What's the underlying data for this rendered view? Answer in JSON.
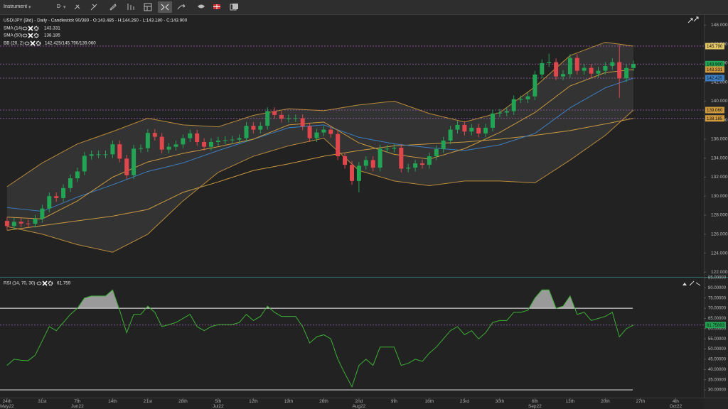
{
  "toolbar": {
    "instrument": "Instrument",
    "interval": "D"
  },
  "chart_data": [
    {
      "type": "candlestick",
      "legend": "USD/JPY (Bid) - Daily - Candlestick  90/380 - O:143.485 - H:144.260 - L:143.180 - C:143.900",
      "xlim": [
        -1,
        99
      ],
      "ylim": [
        121.5,
        149
      ],
      "yticks": [
        {
          "value": 148,
          "label": "148.000"
        },
        {
          "value": 146,
          "label": "146.000"
        },
        {
          "value": 144,
          "label": "144.000"
        },
        {
          "value": 142,
          "label": "142.000"
        },
        {
          "value": 140,
          "label": "140.000"
        },
        {
          "value": 138,
          "label": "138.000"
        },
        {
          "value": 136,
          "label": "136.000"
        },
        {
          "value": 134,
          "label": "134.000"
        },
        {
          "value": 132,
          "label": "132.000"
        },
        {
          "value": 130,
          "label": "130.000"
        },
        {
          "value": 128,
          "label": "128.000"
        },
        {
          "value": 126,
          "label": "126.000"
        },
        {
          "value": 124,
          "label": "124.000"
        },
        {
          "value": 122,
          "label": "122.000"
        }
      ],
      "xticks": [
        {
          "value": 0,
          "label": "24th May22"
        },
        {
          "value": 5,
          "label": "31st"
        },
        {
          "value": 10,
          "label": "7th Jun22"
        },
        {
          "value": 15,
          "label": "14th"
        },
        {
          "value": 20,
          "label": "21st"
        },
        {
          "value": 25,
          "label": "28th"
        },
        {
          "value": 30,
          "label": "5th Jul22"
        },
        {
          "value": 35,
          "label": "12th"
        },
        {
          "value": 40,
          "label": "19th"
        },
        {
          "value": 45,
          "label": "26th"
        },
        {
          "value": 50,
          "label": "2nd Aug22"
        },
        {
          "value": 55,
          "label": "9th"
        },
        {
          "value": 60,
          "label": "16th"
        },
        {
          "value": 65,
          "label": "23rd"
        },
        {
          "value": 70,
          "label": "30th"
        },
        {
          "value": 75,
          "label": "6th Sep22"
        },
        {
          "value": 80,
          "label": "13th"
        },
        {
          "value": 85,
          "label": "20th"
        },
        {
          "value": 90,
          "label": "27th"
        },
        {
          "value": 95,
          "label": "4th Oct22"
        }
      ],
      "up_color": "#22a454",
      "down_color": "#e0474c",
      "x": [
        0,
        1,
        2,
        3,
        4,
        5,
        6,
        7,
        8,
        9,
        10,
        11,
        12,
        13,
        14,
        15,
        16,
        17,
        18,
        19,
        20,
        21,
        22,
        23,
        24,
        25,
        26,
        27,
        28,
        29,
        30,
        31,
        32,
        33,
        34,
        35,
        36,
        37,
        38,
        39,
        40,
        41,
        42,
        43,
        44,
        45,
        46,
        47,
        48,
        49,
        50,
        51,
        52,
        53,
        54,
        55,
        56,
        57,
        58,
        59,
        60,
        61,
        62,
        63,
        64,
        65,
        66,
        67,
        68,
        69,
        70,
        71,
        72,
        73,
        74,
        75,
        76,
        77,
        78,
        79,
        80,
        81,
        82,
        83,
        84,
        85,
        86,
        87,
        88,
        89
      ],
      "open": [
        127.4,
        126.85,
        127.3,
        127.12,
        127.1,
        127.62,
        128.7,
        130.0,
        129.8,
        130.85,
        131.88,
        132.6,
        134.25,
        134.4,
        134.4,
        134.4,
        135.46,
        133.95,
        132.2,
        135.0,
        135.05,
        136.65,
        136.25,
        134.9,
        135.2,
        135.45,
        136.1,
        136.6,
        135.7,
        135.2,
        135.7,
        135.85,
        135.9,
        135.95,
        136.1,
        137.4,
        137.0,
        137.4,
        138.95,
        138.55,
        138.15,
        138.2,
        138.2,
        137.35,
        136.1,
        136.7,
        137.0,
        136.55,
        134.2,
        133.3,
        131.6,
        133.2,
        133.8,
        133.0,
        135.0,
        135.0,
        135.1,
        132.9,
        133.0,
        133.45,
        133.3,
        134.2,
        134.95,
        135.85,
        137.0,
        137.5,
        136.8,
        137.2,
        136.6,
        137.2,
        138.7,
        138.8,
        138.95,
        140.2,
        140.2,
        140.5,
        142.8,
        144.0,
        144.1,
        142.6,
        142.85,
        144.55,
        143.2,
        143.5,
        142.9,
        143.2,
        143.7,
        144.1,
        142.4,
        143.485
      ],
      "high": [
        127.8,
        127.7,
        127.7,
        127.52,
        128.02,
        129.1,
        130.4,
        130.4,
        131.25,
        132.28,
        133.0,
        134.65,
        134.8,
        134.8,
        134.8,
        135.86,
        135.86,
        134.35,
        135.4,
        135.45,
        137.05,
        137.05,
        136.65,
        135.6,
        135.85,
        136.5,
        137.0,
        137.0,
        136.1,
        136.1,
        136.25,
        136.3,
        136.35,
        136.5,
        137.8,
        137.8,
        137.8,
        139.35,
        139.35,
        138.95,
        138.6,
        138.6,
        138.6,
        137.75,
        137.1,
        137.4,
        137.4,
        136.95,
        134.6,
        133.7,
        133.6,
        134.2,
        134.2,
        135.4,
        135.4,
        135.5,
        135.5,
        133.4,
        133.85,
        133.85,
        134.6,
        135.35,
        136.25,
        137.4,
        137.9,
        137.9,
        137.6,
        137.6,
        137.6,
        139.1,
        139.2,
        139.35,
        140.6,
        140.6,
        140.9,
        143.2,
        144.4,
        144.99,
        144.5,
        143.25,
        144.95,
        144.95,
        143.9,
        143.9,
        143.6,
        144.1,
        144.5,
        145.9,
        143.85,
        144.26
      ],
      "low": [
        126.45,
        126.45,
        126.72,
        126.7,
        126.7,
        127.22,
        128.3,
        129.4,
        129.4,
        130.45,
        131.48,
        132.2,
        133.85,
        134.0,
        134.0,
        134.0,
        133.55,
        131.8,
        131.8,
        134.6,
        134.65,
        135.85,
        134.5,
        134.5,
        134.8,
        135.05,
        135.7,
        135.3,
        134.8,
        134.8,
        135.3,
        135.45,
        135.5,
        135.55,
        135.7,
        136.6,
        136.6,
        137.0,
        138.15,
        137.75,
        137.75,
        137.8,
        136.95,
        135.7,
        135.7,
        136.3,
        136.15,
        133.8,
        132.9,
        131.2,
        130.4,
        132.8,
        132.6,
        132.6,
        134.6,
        134.6,
        132.5,
        132.5,
        132.6,
        132.9,
        132.9,
        133.8,
        134.55,
        135.45,
        136.6,
        136.4,
        136.4,
        136.2,
        136.2,
        136.8,
        138.3,
        138.4,
        138.55,
        139.8,
        139.8,
        140.1,
        142.4,
        143.6,
        142.2,
        142.2,
        142.45,
        142.8,
        142.8,
        142.5,
        142.5,
        142.8,
        143.3,
        140.35,
        142.0,
        143.18
      ],
      "close": [
        126.85,
        127.3,
        127.12,
        127.1,
        127.62,
        128.7,
        130.0,
        129.8,
        130.85,
        131.88,
        132.6,
        134.25,
        134.4,
        134.4,
        134.4,
        135.46,
        133.95,
        132.2,
        135.0,
        135.05,
        136.65,
        136.25,
        134.9,
        135.2,
        135.45,
        136.1,
        136.6,
        135.7,
        135.2,
        135.7,
        135.85,
        135.9,
        135.95,
        136.1,
        137.4,
        137.0,
        137.4,
        138.95,
        138.55,
        138.15,
        138.2,
        138.2,
        137.35,
        136.1,
        136.7,
        137.0,
        136.55,
        134.2,
        133.3,
        131.6,
        133.2,
        133.8,
        133.0,
        135.0,
        135.0,
        135.1,
        132.9,
        133.0,
        133.45,
        133.3,
        134.2,
        134.95,
        135.85,
        137.0,
        137.5,
        136.8,
        137.2,
        136.6,
        137.2,
        138.7,
        138.8,
        138.95,
        140.2,
        140.2,
        140.5,
        142.8,
        144.0,
        144.1,
        142.6,
        142.85,
        144.55,
        143.2,
        143.5,
        142.9,
        143.2,
        143.7,
        144.1,
        142.4,
        143.485,
        143.9
      ],
      "sample_x": [
        0,
        5,
        10,
        15,
        20,
        25,
        30,
        35,
        40,
        45,
        50,
        55,
        60,
        65,
        70,
        75,
        80,
        85,
        89
      ],
      "sma14": {
        "label": "SMA (14)",
        "value_label": "143.331",
        "color": "#c8993f",
        "values": [
          127.8,
          127.6,
          129.5,
          132.0,
          133.6,
          134.5,
          135.2,
          136.0,
          137.5,
          137.8,
          135.6,
          134.4,
          133.9,
          135.0,
          136.7,
          138.8,
          141.6,
          143.0,
          143.331
        ]
      },
      "sma50": {
        "label": "SMA (50)",
        "value_label": "138.185",
        "color": "#c8993f",
        "values": [
          126.4,
          126.9,
          127.4,
          127.9,
          128.6,
          130.4,
          131.5,
          132.7,
          133.4,
          134.2,
          134.8,
          135.3,
          135.5,
          135.7,
          136.0,
          136.4,
          136.9,
          137.6,
          138.185
        ]
      },
      "bb": {
        "label": "BB (20, 2)",
        "value_label": "142.425/145.790/139.060",
        "band_color": "#b88a3a",
        "mid_color": "#3b7fc4",
        "fill": "#3a3a3a",
        "upper": [
          131.0,
          133.5,
          135.5,
          136.8,
          138.2,
          137.5,
          137.3,
          138.5,
          139.2,
          139.0,
          139.6,
          140.0,
          138.7,
          137.8,
          138.8,
          141.5,
          144.8,
          146.2,
          145.79
        ],
        "mid": [
          128.8,
          128.4,
          129.9,
          131.2,
          132.6,
          133.5,
          134.8,
          136.0,
          137.2,
          137.5,
          136.2,
          135.5,
          135.1,
          134.8,
          135.4,
          136.6,
          139.3,
          141.4,
          142.425
        ],
        "lower": [
          126.8,
          126.0,
          124.9,
          124.1,
          126.0,
          129.5,
          132.5,
          134.2,
          135.3,
          136.1,
          132.7,
          131.6,
          131.1,
          131.6,
          131.6,
          131.4,
          133.8,
          136.4,
          139.06
        ]
      },
      "price_labels": [
        {
          "value": 145.79,
          "label": "145.790",
          "color": "#e3c766",
          "guide": true
        },
        {
          "value": 143.9,
          "label": "143.900",
          "color": "#22a454",
          "guide": true
        },
        {
          "value": 143.331,
          "label": "143.331",
          "color": "#d09a3e",
          "guide": false
        },
        {
          "value": 142.425,
          "label": "142.425",
          "color": "#3b7fc4",
          "guide": true
        },
        {
          "value": 139.06,
          "label": "139.060",
          "color": "#d09a3e",
          "guide": true
        },
        {
          "value": 138.185,
          "label": "138.185",
          "color": "#d09a3e",
          "guide": true
        }
      ],
      "guide_color": "#a05fb0"
    },
    {
      "type": "line",
      "legend": "RSI (14, 70, 30)",
      "value_label": "61.759",
      "color": "#3cb034",
      "ylim": [
        24.1,
        85
      ],
      "yticks": [
        {
          "value": 85,
          "label": "85.00000"
        },
        {
          "value": 80,
          "label": "80.00000"
        },
        {
          "value": 75,
          "label": "75.00000"
        },
        {
          "value": 70,
          "label": "70.00000"
        },
        {
          "value": 65,
          "label": "65.00000"
        },
        {
          "value": 60,
          "label": "60.00000"
        },
        {
          "value": 55,
          "label": "55.00000"
        },
        {
          "value": 50,
          "label": "50.00000"
        },
        {
          "value": 45,
          "label": "45.00000"
        },
        {
          "value": 40,
          "label": "40.00000"
        },
        {
          "value": 35,
          "label": "35.00000"
        },
        {
          "value": 30,
          "label": "30.00000"
        }
      ],
      "levels": [
        70,
        30
      ],
      "level_color": "#cfcfcf",
      "overbought_fill": "#9a9a9a",
      "values": [
        42,
        45,
        44.5,
        44.3,
        47,
        54,
        61,
        59,
        63,
        67,
        70,
        75,
        76,
        76,
        76,
        79,
        69,
        58,
        67,
        67,
        71,
        68,
        61,
        62,
        63,
        65,
        67,
        61,
        59,
        61,
        62,
        62,
        62,
        63,
        67,
        64,
        66,
        71,
        68,
        66,
        66,
        66,
        61,
        53,
        56,
        57,
        55,
        45,
        38,
        31.5,
        42,
        45,
        42,
        51,
        51,
        51,
        42,
        43,
        45,
        44,
        48,
        51,
        55,
        59,
        61,
        57,
        59,
        55,
        58,
        63,
        64,
        64,
        68,
        68,
        69,
        75,
        79,
        79,
        70,
        71,
        76,
        67,
        68,
        64,
        65,
        66,
        68,
        56,
        60,
        61.75893
      ],
      "current_label": {
        "value": 61.75893,
        "label": "61.75893",
        "color": "#22a454"
      }
    }
  ]
}
